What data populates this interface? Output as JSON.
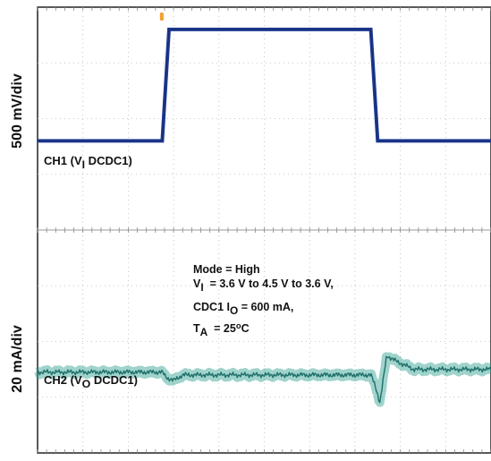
{
  "chart_data": {
    "type": "line",
    "title": "",
    "y_axis_labels": {
      "top": "500 mV/div",
      "bottom": "20 mA/div"
    },
    "grid": true,
    "grid_divisions": {
      "x": 10,
      "y": 8
    },
    "x_unit": "div",
    "xlim": [
      0,
      10
    ],
    "series": [
      {
        "name": "CH1 (V_I DCDC1)",
        "label_parts": {
          "pre": "CH1 (V",
          "sub": "I",
          "post": " DCDC1)"
        },
        "unit": "div",
        "color": "#1f3c94",
        "x": [
          0,
          2.75,
          2.9,
          7.35,
          7.5,
          10
        ],
        "values": [
          -0.2,
          -0.2,
          1.8,
          1.8,
          -0.2,
          -0.2
        ]
      },
      {
        "name": "CH2 (V_O DCDC1)",
        "label_parts": {
          "pre": "CH2 (V",
          "sub": "O",
          "post": " DCDC1)"
        },
        "unit": "div",
        "color": "#2a9d8f",
        "x": [
          0,
          2.75,
          2.85,
          3.0,
          3.2,
          7.35,
          7.45,
          7.55,
          7.7,
          7.9,
          8.3,
          10
        ],
        "values": [
          -0.35,
          -0.35,
          -0.45,
          -0.5,
          -0.4,
          -0.4,
          -0.6,
          -0.9,
          -0.05,
          -0.15,
          -0.3,
          -0.3
        ]
      }
    ],
    "annotations": {
      "line1": "Mode = High",
      "line2": {
        "pre": "V",
        "sub": "I",
        "post": "  = 3.6 V to 4.5 V to 3.6 V,"
      },
      "line3": {
        "pre": "CDC1 I",
        "sub": "O",
        "post": " = 600 mA,"
      },
      "line4": {
        "pre": "T",
        "sub": "A",
        "mid": "  = 25",
        "sup": "o",
        "post": "C"
      }
    },
    "trigger_marker_color": "#f0a030"
  }
}
